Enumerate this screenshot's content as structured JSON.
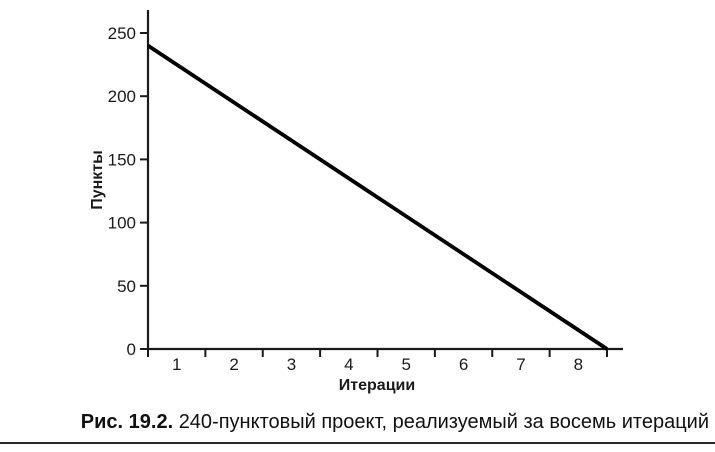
{
  "figure": {
    "caption_label": "Рис. 19.2.",
    "caption_text": "240-пунктовый проект, реализуемый за восемь итераций"
  },
  "chart_data": {
    "type": "line",
    "title": "",
    "xlabel": "Итерации",
    "ylabel": "Пункты",
    "xlim": [
      0.5,
      8.77
    ],
    "ylim": [
      0,
      267
    ],
    "x_tick_labels": [
      1,
      2,
      3,
      4,
      5,
      6,
      7,
      8
    ],
    "x_tick_marks": [
      0.5,
      1.5,
      2.5,
      3.5,
      4.5,
      5.5,
      6.5,
      7.5,
      8.5
    ],
    "y_ticks": [
      0,
      50,
      100,
      150,
      200,
      250
    ],
    "grid": false,
    "legend": false,
    "series": [
      {
        "name": "burndown-line",
        "x": [
          0.5,
          8.5
        ],
        "y": [
          240,
          0
        ]
      }
    ],
    "colors": {
      "line": "#000000",
      "axis": "#1a1a1a",
      "text": "#1a1a1a"
    }
  }
}
